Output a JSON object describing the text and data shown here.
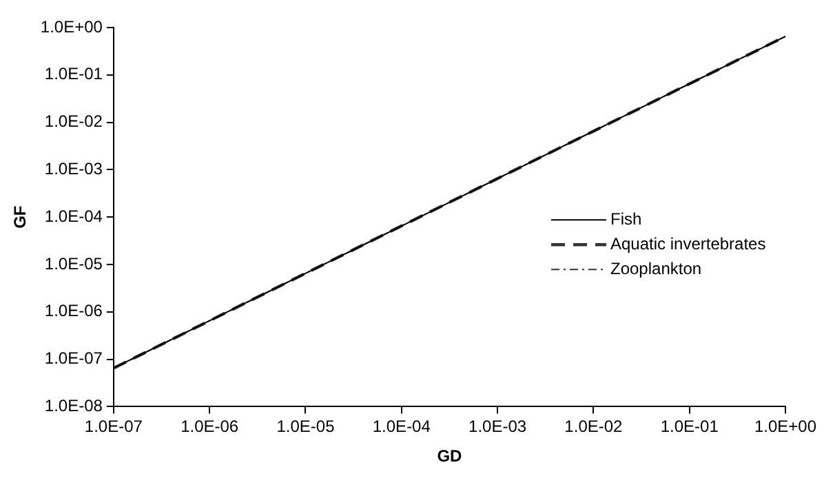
{
  "chart_data": {
    "type": "line",
    "xlabel": "GD",
    "ylabel": "GF",
    "log": "xy",
    "grid": false,
    "legend": "right",
    "marker": "none",
    "x": [
      1e-07,
      1e-06,
      1e-05,
      0.0001,
      0.001,
      0.01,
      0.1,
      1
    ],
    "xlim": [
      1e-07,
      1
    ],
    "xticks": [
      {
        "value": 1e-07,
        "label": "1.0E-07"
      },
      {
        "value": 1e-06,
        "label": "1.0E-06"
      },
      {
        "value": 1e-05,
        "label": "1.0E-05"
      },
      {
        "value": 0.0001,
        "label": "1.0E-04"
      },
      {
        "value": 0.001,
        "label": "1.0E-03"
      },
      {
        "value": 0.01,
        "label": "1.0E-02"
      },
      {
        "value": 0.1,
        "label": "1.0E-01"
      },
      {
        "value": 1,
        "label": "1.0E+00"
      }
    ],
    "ylim": [
      1e-08,
      1
    ],
    "yticks": [
      {
        "value": 1e-08,
        "label": "1.0E-08"
      },
      {
        "value": 1e-07,
        "label": "1.0E-07"
      },
      {
        "value": 1e-06,
        "label": "1.0E-06"
      },
      {
        "value": 1e-05,
        "label": "1.0E-05"
      },
      {
        "value": 0.0001,
        "label": "1.0E-04"
      },
      {
        "value": 0.001,
        "label": "1.0E-03"
      },
      {
        "value": 0.01,
        "label": "1.0E-02"
      },
      {
        "value": 0.1,
        "label": "1.0E-01"
      },
      {
        "value": 1,
        "label": "1.0E+00"
      }
    ],
    "series": [
      {
        "name": "Fish",
        "color": "#000000",
        "line_style": "solid",
        "values": [
          6.5e-08,
          6.5e-07,
          6.5e-06,
          6.5e-05,
          0.00065,
          0.0065,
          0.065,
          0.65
        ]
      },
      {
        "name": "Aquatic invertebrates",
        "color": "#333333",
        "line_style": "dashed",
        "values": [
          6.5e-08,
          6.5e-07,
          6.5e-06,
          6.5e-05,
          0.00065,
          0.0065,
          0.065,
          0.65
        ]
      },
      {
        "name": "Zooplankton",
        "color": "#333333",
        "line_style": "dotted",
        "values": [
          6.5e-08,
          6.5e-07,
          6.5e-06,
          6.5e-05,
          0.00065,
          0.0065,
          0.065,
          0.65
        ]
      }
    ]
  }
}
